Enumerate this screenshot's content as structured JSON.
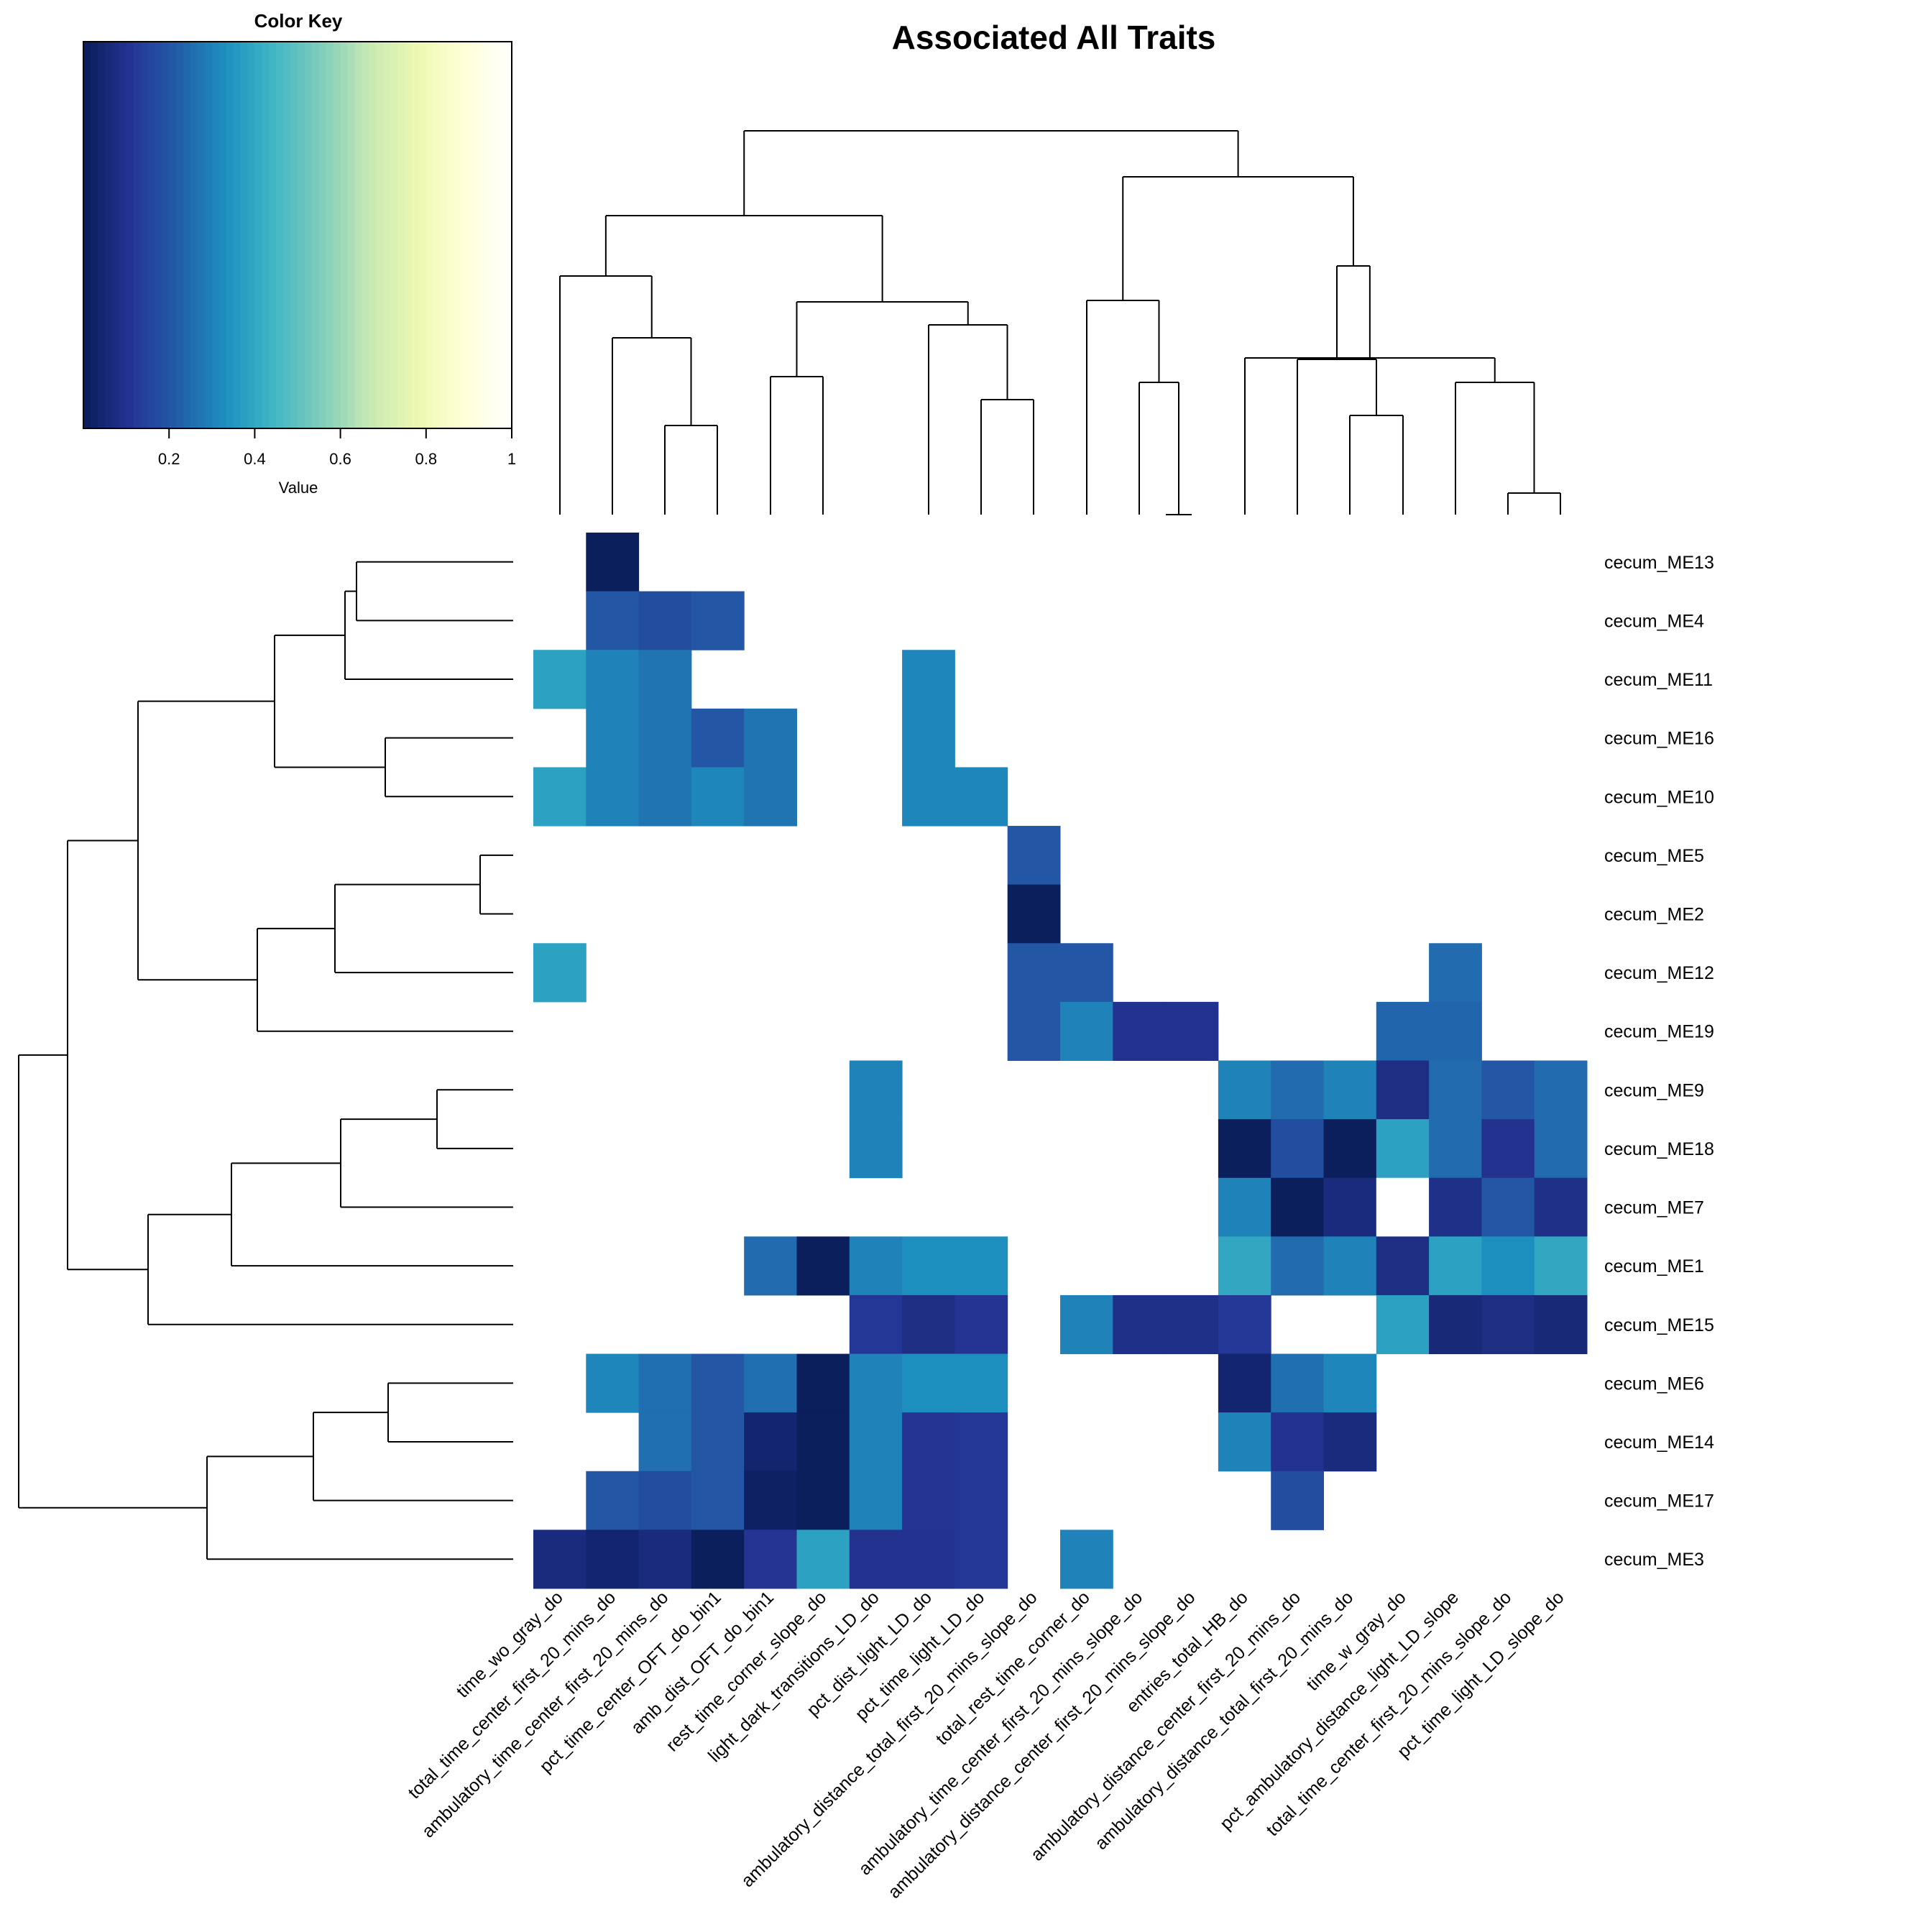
{
  "chart_data": {
    "type": "heatmap",
    "title": "Associated All Traits",
    "color_key": {
      "title": "Color Key",
      "xlabel": "Value",
      "ticks": [
        "0.2",
        "0.4",
        "0.6",
        "0.8",
        "1"
      ],
      "range": [
        0,
        1
      ],
      "colormap": "YlGnBu reversed",
      "stops": [
        "#081d58",
        "#253494",
        "#225ea8",
        "#1d91c0",
        "#41b6c4",
        "#7fcdbb",
        "#c7e9b4",
        "#edf8b1",
        "#ffffd9",
        "#ffffff"
      ]
    },
    "rows": [
      "cecum_ME13",
      "cecum_ME4",
      "cecum_ME11",
      "cecum_ME16",
      "cecum_ME10",
      "cecum_ME5",
      "cecum_ME2",
      "cecum_ME12",
      "cecum_ME19",
      "cecum_ME9",
      "cecum_ME18",
      "cecum_ME7",
      "cecum_ME1",
      "cecum_ME15",
      "cecum_ME6",
      "cecum_ME14",
      "cecum_ME17",
      "cecum_ME3"
    ],
    "columns": [
      "time_wo_gray_do",
      "total_time_center_first_20_mins_do",
      "ambulatory_time_center_first_20_mins_do",
      "pct_time_center_OFT_do_bin1",
      "amb_dist_OFT_do_bin1",
      "rest_time_corner_slope_do",
      "light_dark_transitions_LD_do",
      "pct_dist_light_LD_do",
      "pct_time_light_LD_do",
      "ambulatory_distance_total_first_20_mins_slope_do",
      "total_rest_time_corner_do",
      "ambulatory_time_center_first_20_mins_slope_do",
      "ambulatory_distance_center_first_20_mins_slope_do",
      "entries_total_HB_do",
      "ambulatory_distance_center_first_20_mins_do",
      "ambulatory_distance_total_first_20_mins_do",
      "time_w_gray_do",
      "pct_ambulatory_distance_light_LD_slope",
      "total_time_center_first_20_mins_slope_do",
      "pct_time_light_LD_slope_do"
    ],
    "values": [
      [
        null,
        0.01,
        null,
        null,
        null,
        null,
        null,
        null,
        null,
        null,
        null,
        null,
        null,
        null,
        null,
        null,
        null,
        null,
        null,
        null
      ],
      [
        null,
        0.2,
        0.18,
        0.2,
        null,
        null,
        null,
        null,
        null,
        null,
        null,
        null,
        null,
        null,
        null,
        null,
        null,
        null,
        null,
        null
      ],
      [
        0.38,
        0.3,
        0.27,
        null,
        null,
        null,
        null,
        0.31,
        null,
        null,
        null,
        null,
        null,
        null,
        null,
        null,
        null,
        null,
        null,
        null
      ],
      [
        null,
        0.3,
        0.27,
        0.2,
        0.27,
        null,
        null,
        0.31,
        null,
        null,
        null,
        null,
        null,
        null,
        null,
        null,
        null,
        null,
        null,
        null
      ],
      [
        0.38,
        0.3,
        0.27,
        0.31,
        0.27,
        null,
        null,
        0.31,
        0.31,
        null,
        null,
        null,
        null,
        null,
        null,
        null,
        null,
        null,
        null,
        null
      ],
      [
        null,
        null,
        null,
        null,
        null,
        null,
        null,
        null,
        null,
        0.2,
        null,
        null,
        null,
        null,
        null,
        null,
        null,
        null,
        null,
        null
      ],
      [
        null,
        null,
        null,
        null,
        null,
        null,
        null,
        null,
        null,
        0.01,
        null,
        null,
        null,
        null,
        null,
        null,
        null,
        null,
        null,
        null
      ],
      [
        0.38,
        null,
        null,
        null,
        null,
        null,
        null,
        null,
        null,
        0.2,
        0.2,
        null,
        null,
        null,
        null,
        null,
        null,
        0.25,
        null,
        null
      ],
      [
        null,
        null,
        null,
        null,
        null,
        null,
        null,
        null,
        null,
        0.2,
        0.3,
        0.1,
        0.1,
        null,
        null,
        null,
        0.24,
        0.24,
        null,
        null
      ],
      [
        null,
        null,
        null,
        null,
        null,
        null,
        0.3,
        null,
        null,
        null,
        null,
        null,
        null,
        0.3,
        0.25,
        0.3,
        0.08,
        0.25,
        0.2,
        0.25
      ],
      [
        null,
        null,
        null,
        null,
        null,
        null,
        0.3,
        null,
        null,
        null,
        null,
        null,
        null,
        0.01,
        0.18,
        0.01,
        0.38,
        0.25,
        0.1,
        0.25
      ],
      [
        null,
        null,
        null,
        null,
        null,
        null,
        null,
        null,
        null,
        null,
        null,
        null,
        null,
        0.3,
        0.01,
        0.07,
        1.0,
        0.09,
        0.2,
        0.09
      ],
      [
        null,
        null,
        null,
        null,
        0.25,
        0.01,
        0.3,
        0.33,
        0.33,
        null,
        null,
        null,
        null,
        0.4,
        0.25,
        0.3,
        0.08,
        0.38,
        0.33,
        0.4
      ],
      [
        null,
        null,
        null,
        null,
        null,
        null,
        0.12,
        0.08,
        0.11,
        null,
        0.3,
        0.09,
        0.09,
        0.12,
        null,
        null,
        0.38,
        0.06,
        0.08,
        0.06
      ],
      [
        null,
        0.31,
        0.26,
        0.2,
        0.26,
        0.01,
        0.3,
        0.33,
        0.33,
        null,
        null,
        null,
        null,
        0.04,
        0.26,
        0.31,
        null,
        null,
        null,
        null
      ],
      [
        null,
        null,
        0.26,
        0.2,
        0.04,
        0.01,
        0.3,
        0.11,
        0.12,
        null,
        null,
        null,
        null,
        0.3,
        0.1,
        0.07,
        null,
        null,
        null,
        null
      ],
      [
        null,
        0.2,
        0.18,
        0.2,
        0.02,
        0.01,
        0.3,
        0.11,
        0.12,
        null,
        null,
        null,
        null,
        null,
        0.18,
        null,
        null,
        null,
        null,
        null
      ],
      [
        0.07,
        0.04,
        0.07,
        0.01,
        0.11,
        0.38,
        0.1,
        0.1,
        0.12,
        null,
        0.3,
        null,
        null,
        null,
        null,
        null,
        null,
        null,
        null,
        null
      ]
    ],
    "row_dendrogram": {
      "order": [
        0,
        1,
        2,
        3,
        4,
        5,
        6,
        7,
        8,
        9,
        10,
        11,
        12,
        13,
        14,
        15,
        16,
        17
      ]
    },
    "col_dendrogram": {
      "order": [
        0,
        1,
        2,
        3,
        4,
        5,
        6,
        7,
        8,
        9,
        10,
        11,
        12,
        13,
        14,
        15,
        16,
        17,
        18,
        19
      ]
    }
  }
}
